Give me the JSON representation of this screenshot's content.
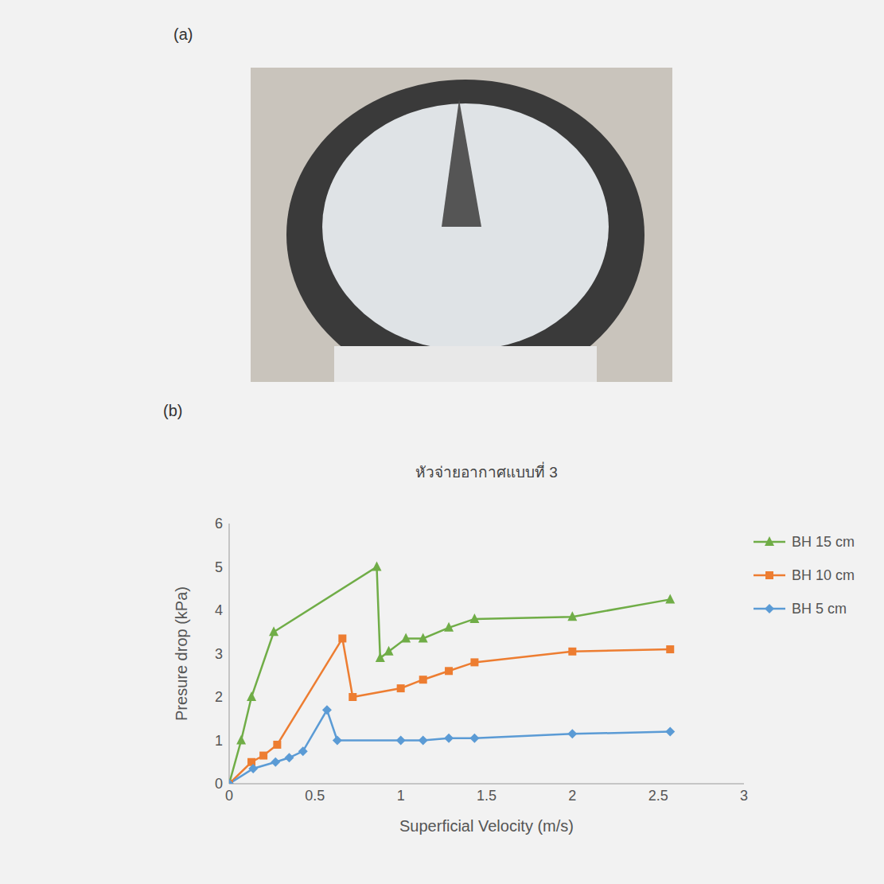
{
  "panels": {
    "a": "(a)",
    "b": "(b)"
  },
  "chart_data": {
    "type": "line",
    "title": "หัวจ่ายอากาศแบบที่ 3",
    "x_label": "Superficial Velocity (m/s)",
    "y_label": "Presure drop (kPa)",
    "xlim": [
      0,
      3
    ],
    "xticks": [
      0,
      0.5,
      1,
      1.5,
      2,
      2.5,
      3
    ],
    "ylim": [
      0,
      6
    ],
    "yticks": [
      0,
      1,
      2,
      3,
      4,
      5,
      6
    ],
    "grid": false,
    "legend": "right",
    "series": [
      {
        "name": "BH 15 cm",
        "color": "#70ad47",
        "marker": "triangle",
        "x": [
          0,
          0.07,
          0.13,
          0.26,
          0.86,
          0.88,
          0.93,
          1.03,
          1.13,
          1.28,
          1.43,
          2.0,
          2.57
        ],
        "values": [
          0,
          1.0,
          2.0,
          3.5,
          5.0,
          2.9,
          3.05,
          3.35,
          3.35,
          3.6,
          3.8,
          3.85,
          4.25
        ]
      },
      {
        "name": "BH 10 cm",
        "color": "#ed7d31",
        "marker": "square",
        "x": [
          0,
          0.13,
          0.2,
          0.28,
          0.66,
          0.72,
          1.0,
          1.13,
          1.28,
          1.43,
          2.0,
          2.57
        ],
        "values": [
          0,
          0.5,
          0.65,
          0.9,
          3.35,
          2.0,
          2.2,
          2.4,
          2.6,
          2.8,
          3.05,
          3.1
        ]
      },
      {
        "name": "BH 5 cm",
        "color": "#5b9bd5",
        "marker": "diamond",
        "x": [
          0,
          0.14,
          0.27,
          0.35,
          0.43,
          0.57,
          0.63,
          1.0,
          1.13,
          1.28,
          1.43,
          2.0,
          2.57
        ],
        "values": [
          0,
          0.35,
          0.5,
          0.6,
          0.75,
          1.7,
          1.0,
          1.0,
          1.0,
          1.05,
          1.05,
          1.15,
          1.2
        ]
      }
    ]
  }
}
